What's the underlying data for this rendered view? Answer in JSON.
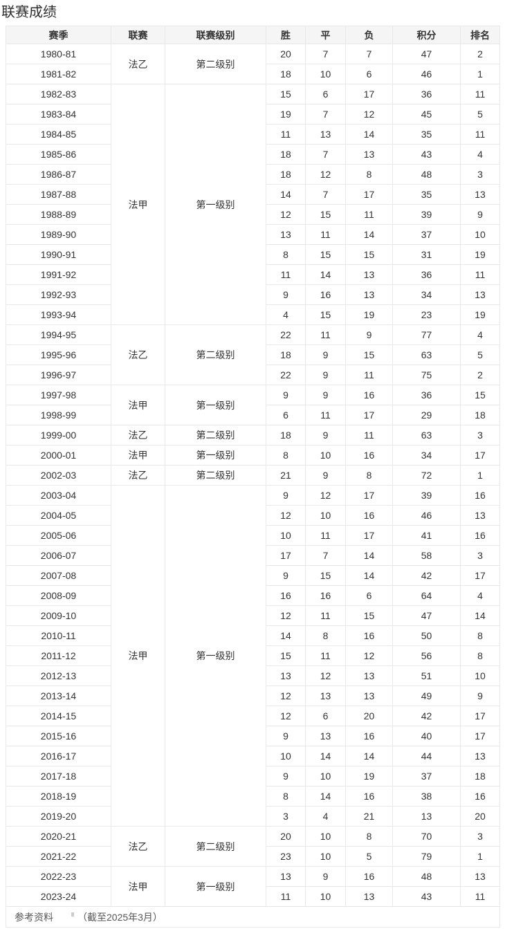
{
  "page": {
    "title": "联赛成绩",
    "footer": {
      "reference_label": "参考资料",
      "reference_note": "（截至2025年3月）"
    }
  },
  "table": {
    "columns": [
      "赛季",
      "联赛",
      "联赛级别",
      "胜",
      "平",
      "负",
      "积分",
      "排名"
    ],
    "groups": [
      {
        "league": "法乙",
        "level": "第二级别",
        "rows": [
          {
            "season": "1980-81",
            "win": 20,
            "draw": 7,
            "loss": 7,
            "points": 47,
            "rank": 2
          },
          {
            "season": "1981-82",
            "win": 18,
            "draw": 10,
            "loss": 6,
            "points": 46,
            "rank": 1
          }
        ]
      },
      {
        "league": "法甲",
        "level": "第一级别",
        "rows": [
          {
            "season": "1982-83",
            "win": 15,
            "draw": 6,
            "loss": 17,
            "points": 36,
            "rank": 11
          },
          {
            "season": "1983-84",
            "win": 19,
            "draw": 7,
            "loss": 12,
            "points": 45,
            "rank": 5
          },
          {
            "season": "1984-85",
            "win": 11,
            "draw": 13,
            "loss": 14,
            "points": 35,
            "rank": 11
          },
          {
            "season": "1985-86",
            "win": 18,
            "draw": 7,
            "loss": 13,
            "points": 43,
            "rank": 4
          },
          {
            "season": "1986-87",
            "win": 18,
            "draw": 12,
            "loss": 8,
            "points": 48,
            "rank": 3
          },
          {
            "season": "1987-88",
            "win": 14,
            "draw": 7,
            "loss": 17,
            "points": 35,
            "rank": 13
          },
          {
            "season": "1988-89",
            "win": 12,
            "draw": 15,
            "loss": 11,
            "points": 39,
            "rank": 9
          },
          {
            "season": "1989-90",
            "win": 13,
            "draw": 11,
            "loss": 14,
            "points": 37,
            "rank": 10
          },
          {
            "season": "1990-91",
            "win": 8,
            "draw": 15,
            "loss": 15,
            "points": 31,
            "rank": 19
          },
          {
            "season": "1991-92",
            "win": 11,
            "draw": 14,
            "loss": 13,
            "points": 36,
            "rank": 11
          },
          {
            "season": "1992-93",
            "win": 9,
            "draw": 16,
            "loss": 13,
            "points": 34,
            "rank": 13
          },
          {
            "season": "1993-94",
            "win": 4,
            "draw": 15,
            "loss": 19,
            "points": 23,
            "rank": 19
          }
        ]
      },
      {
        "league": "法乙",
        "level": "第二级别",
        "rows": [
          {
            "season": "1994-95",
            "win": 22,
            "draw": 11,
            "loss": 9,
            "points": 77,
            "rank": 4
          },
          {
            "season": "1995-96",
            "win": 18,
            "draw": 9,
            "loss": 15,
            "points": 63,
            "rank": 5
          },
          {
            "season": "1996-97",
            "win": 22,
            "draw": 9,
            "loss": 11,
            "points": 75,
            "rank": 2
          }
        ]
      },
      {
        "league": "法甲",
        "level": "第一级别",
        "rows": [
          {
            "season": "1997-98",
            "win": 9,
            "draw": 9,
            "loss": 16,
            "points": 36,
            "rank": 15
          },
          {
            "season": "1998-99",
            "win": 6,
            "draw": 11,
            "loss": 17,
            "points": 29,
            "rank": 18
          }
        ]
      },
      {
        "league": "法乙",
        "level": "第二级别",
        "rows": [
          {
            "season": "1999-00",
            "win": 18,
            "draw": 9,
            "loss": 11,
            "points": 63,
            "rank": 3
          }
        ]
      },
      {
        "league": "法甲",
        "level": "第一级别",
        "rows": [
          {
            "season": "2000-01",
            "win": 8,
            "draw": 10,
            "loss": 16,
            "points": 34,
            "rank": 17
          }
        ]
      },
      {
        "league": "法乙",
        "level": "第二级别",
        "rows": [
          {
            "season": "2002-03",
            "win": 21,
            "draw": 9,
            "loss": 8,
            "points": 72,
            "rank": 1
          }
        ]
      },
      {
        "league": "法甲",
        "level": "第一级别",
        "rows": [
          {
            "season": "2003-04",
            "win": 9,
            "draw": 12,
            "loss": 17,
            "points": 39,
            "rank": 16
          },
          {
            "season": "2004-05",
            "win": 12,
            "draw": 10,
            "loss": 16,
            "points": 46,
            "rank": 13
          },
          {
            "season": "2005-06",
            "win": 10,
            "draw": 11,
            "loss": 17,
            "points": 41,
            "rank": 16
          },
          {
            "season": "2006-07",
            "win": 17,
            "draw": 7,
            "loss": 14,
            "points": 58,
            "rank": 3
          },
          {
            "season": "2007-08",
            "win": 9,
            "draw": 15,
            "loss": 14,
            "points": 42,
            "rank": 17
          },
          {
            "season": "2008-09",
            "win": 16,
            "draw": 16,
            "loss": 6,
            "points": 64,
            "rank": 4
          },
          {
            "season": "2009-10",
            "win": 12,
            "draw": 11,
            "loss": 15,
            "points": 47,
            "rank": 14
          },
          {
            "season": "2010-11",
            "win": 14,
            "draw": 8,
            "loss": 16,
            "points": 50,
            "rank": 8
          },
          {
            "season": "2011-12",
            "win": 15,
            "draw": 11,
            "loss": 12,
            "points": 56,
            "rank": 8
          },
          {
            "season": "2012-13",
            "win": 13,
            "draw": 12,
            "loss": 13,
            "points": 51,
            "rank": 10
          },
          {
            "season": "2013-14",
            "win": 12,
            "draw": 13,
            "loss": 13,
            "points": 49,
            "rank": 9
          },
          {
            "season": "2014-15",
            "win": 12,
            "draw": 6,
            "loss": 20,
            "points": 42,
            "rank": 17
          },
          {
            "season": "2015-16",
            "win": 9,
            "draw": 13,
            "loss": 16,
            "points": 40,
            "rank": 17
          },
          {
            "season": "2016-17",
            "win": 10,
            "draw": 14,
            "loss": 14,
            "points": 44,
            "rank": 13
          },
          {
            "season": "2017-18",
            "win": 9,
            "draw": 10,
            "loss": 19,
            "points": 37,
            "rank": 18
          },
          {
            "season": "2018-19",
            "win": 8,
            "draw": 14,
            "loss": 16,
            "points": 38,
            "rank": 16
          },
          {
            "season": "2019-20",
            "win": 3,
            "draw": 4,
            "loss": 21,
            "points": 13,
            "rank": 20
          }
        ]
      },
      {
        "league": "法乙",
        "level": "第二级别",
        "rows": [
          {
            "season": "2020-21",
            "win": 20,
            "draw": 10,
            "loss": 8,
            "points": 70,
            "rank": 3
          },
          {
            "season": "2021-22",
            "win": 23,
            "draw": 10,
            "loss": 5,
            "points": 79,
            "rank": 1
          }
        ]
      },
      {
        "league": "法甲",
        "level": "第一级别",
        "rows": [
          {
            "season": "2022-23",
            "win": 13,
            "draw": 9,
            "loss": 16,
            "points": 48,
            "rank": 13
          },
          {
            "season": "2023-24",
            "win": 11,
            "draw": 10,
            "loss": 13,
            "points": 43,
            "rank": 11
          }
        ]
      }
    ]
  }
}
